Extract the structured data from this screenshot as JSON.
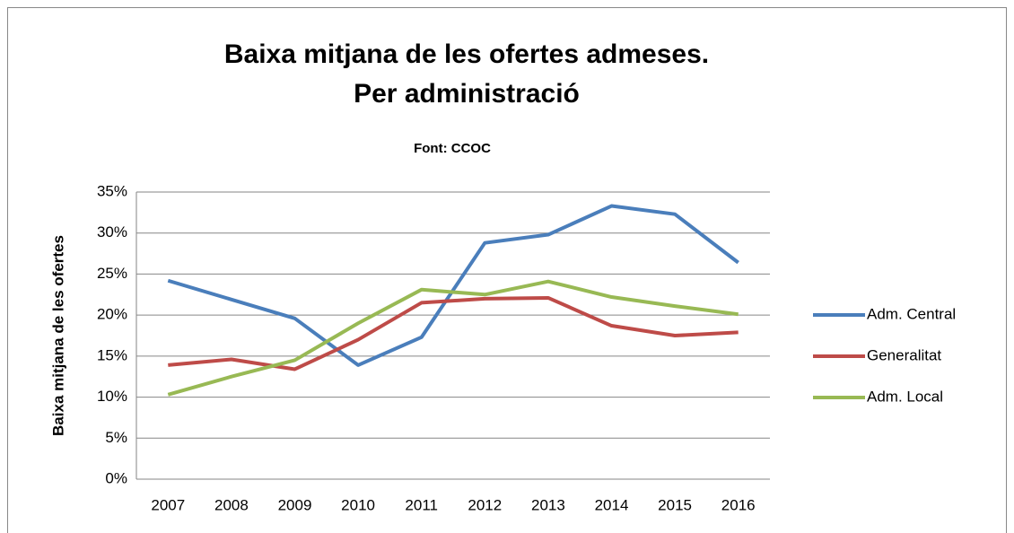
{
  "chart_data": {
    "type": "line",
    "title": [
      "Baixa mitjana de les ofertes admeses.",
      "Per administració"
    ],
    "subtitle": "Font: CCOC",
    "y_label": "Baixa mitjana de les ofertes",
    "categories": [
      "2007",
      "2008",
      "2009",
      "2010",
      "2011",
      "2012",
      "2013",
      "2014",
      "2015",
      "2016"
    ],
    "series": [
      {
        "name": "Adm. Central",
        "color": "#4a7ebb",
        "values": [
          24.2,
          21.9,
          19.6,
          13.9,
          17.3,
          28.8,
          29.8,
          33.3,
          32.3,
          26.4
        ]
      },
      {
        "name": "Generalitat",
        "color": "#be4b48",
        "values": [
          13.9,
          14.6,
          13.4,
          17.0,
          21.5,
          22.0,
          22.1,
          18.7,
          17.5,
          17.9
        ]
      },
      {
        "name": "Adm. Local",
        "color": "#98b954",
        "values": [
          10.3,
          12.5,
          14.5,
          19.0,
          23.1,
          22.5,
          24.1,
          22.2,
          21.1,
          20.1
        ]
      }
    ],
    "ylim": [
      0,
      35
    ],
    "yticks": [
      {
        "value": 0,
        "label": "0%"
      },
      {
        "value": 5,
        "label": "5%"
      },
      {
        "value": 10,
        "label": "10%"
      },
      {
        "value": 15,
        "label": "15%"
      },
      {
        "value": 20,
        "label": "20%"
      },
      {
        "value": 25,
        "label": "25%"
      },
      {
        "value": 30,
        "label": "30%"
      },
      {
        "value": 35,
        "label": "35%"
      }
    ],
    "grid": true,
    "legend": "right"
  }
}
